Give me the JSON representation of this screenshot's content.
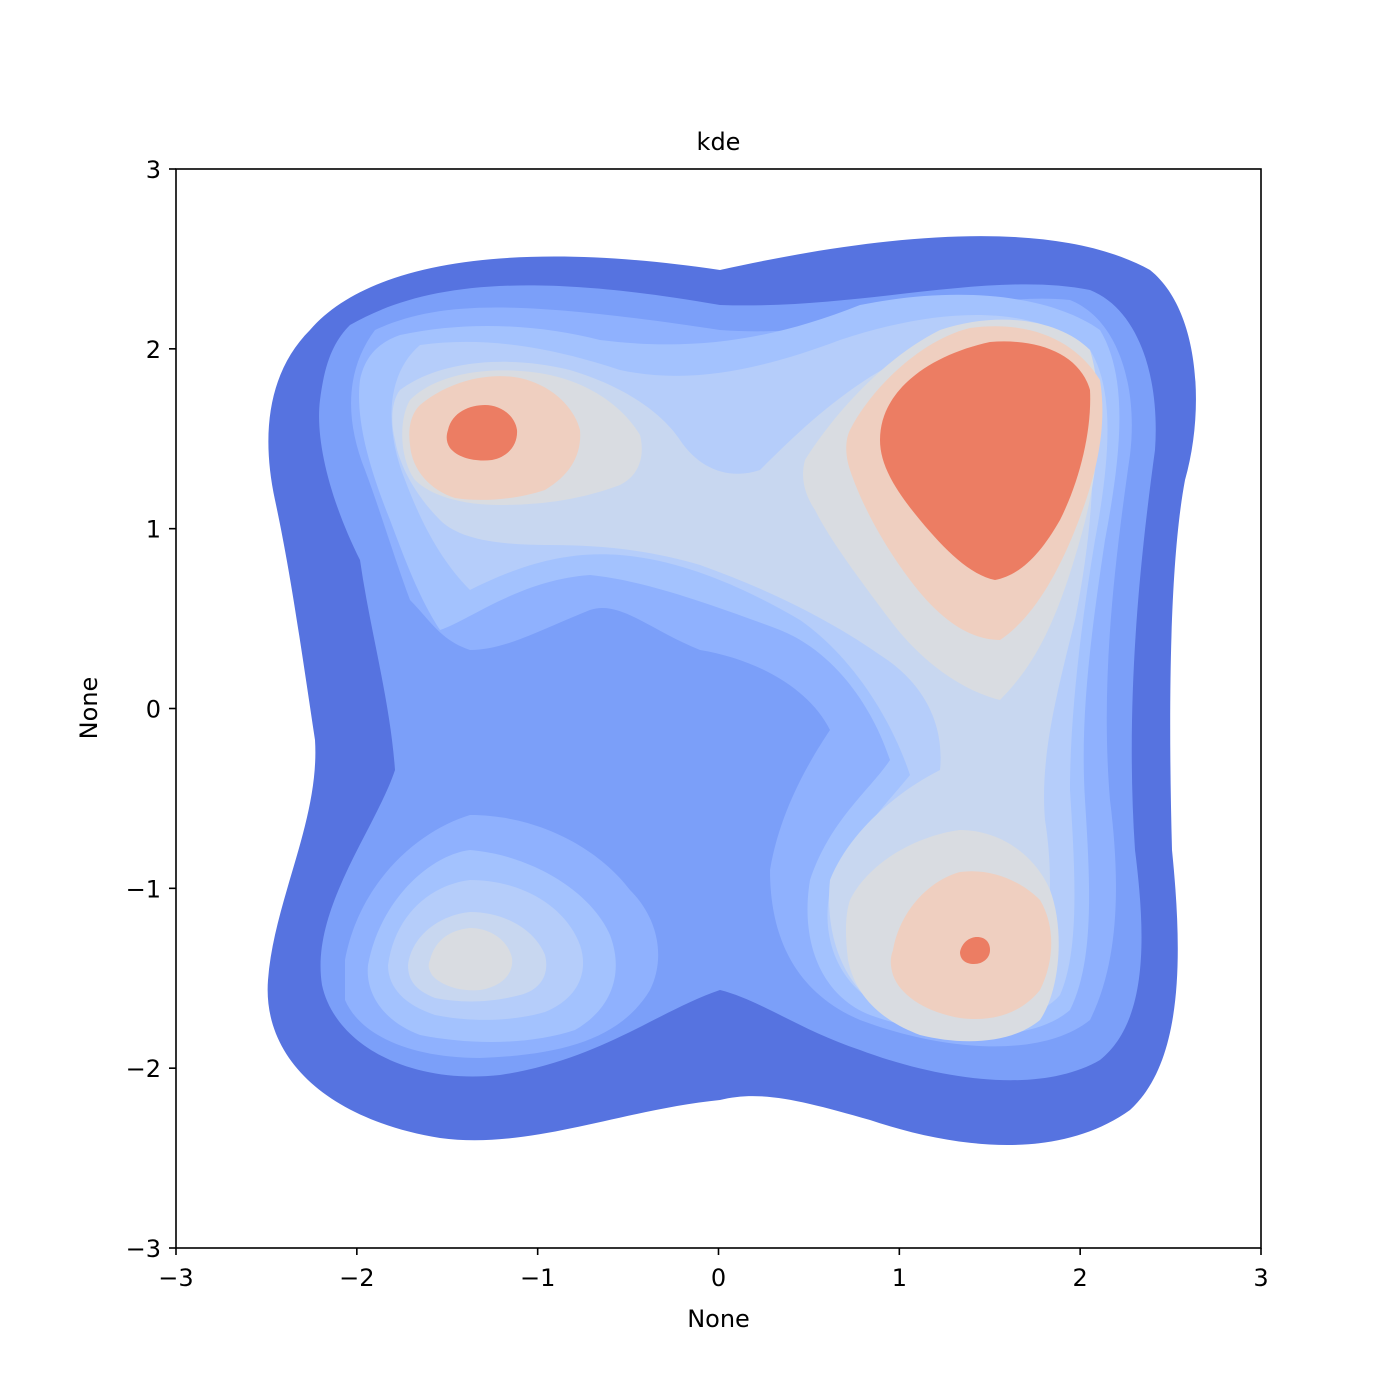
{
  "chart_data": {
    "type": "heatmap",
    "title": "kde",
    "xlabel": "None",
    "ylabel": "None",
    "xlim": [
      -3,
      3
    ],
    "ylim": [
      -3,
      3
    ],
    "xticks": [
      {
        "value": -3,
        "label": "−3"
      },
      {
        "value": -2,
        "label": "−2"
      },
      {
        "value": -1,
        "label": "−1"
      },
      {
        "value": 0,
        "label": "0"
      },
      {
        "value": 1,
        "label": "1"
      },
      {
        "value": 2,
        "label": "2"
      },
      {
        "value": 3,
        "label": "3"
      }
    ],
    "yticks": [
      {
        "value": -3,
        "label": "−3"
      },
      {
        "value": -2,
        "label": "−2"
      },
      {
        "value": -1,
        "label": "−1"
      },
      {
        "value": 0,
        "label": "0"
      },
      {
        "value": 1,
        "label": "1"
      },
      {
        "value": 2,
        "label": "2"
      },
      {
        "value": 3,
        "label": "3"
      }
    ],
    "grid": false,
    "colormap": "coolwarm",
    "filled_contour_levels": 9,
    "level_colors": [
      "#5673e0",
      "#7b9ff9",
      "#8fb1fe",
      "#a3c2fe",
      "#b5cdfa",
      "#c8d7f0",
      "#d9dce1",
      "#efcfc0",
      "#ec7d63"
    ],
    "density_modes": [
      {
        "x": 1.55,
        "y": 1.35,
        "peak_level": 9
      },
      {
        "x": -1.3,
        "y": 1.55,
        "peak_level": 9
      },
      {
        "x": 1.45,
        "y": -1.35,
        "peak_level": 9
      },
      {
        "x": -1.45,
        "y": -1.45,
        "peak_level": 7
      }
    ]
  }
}
